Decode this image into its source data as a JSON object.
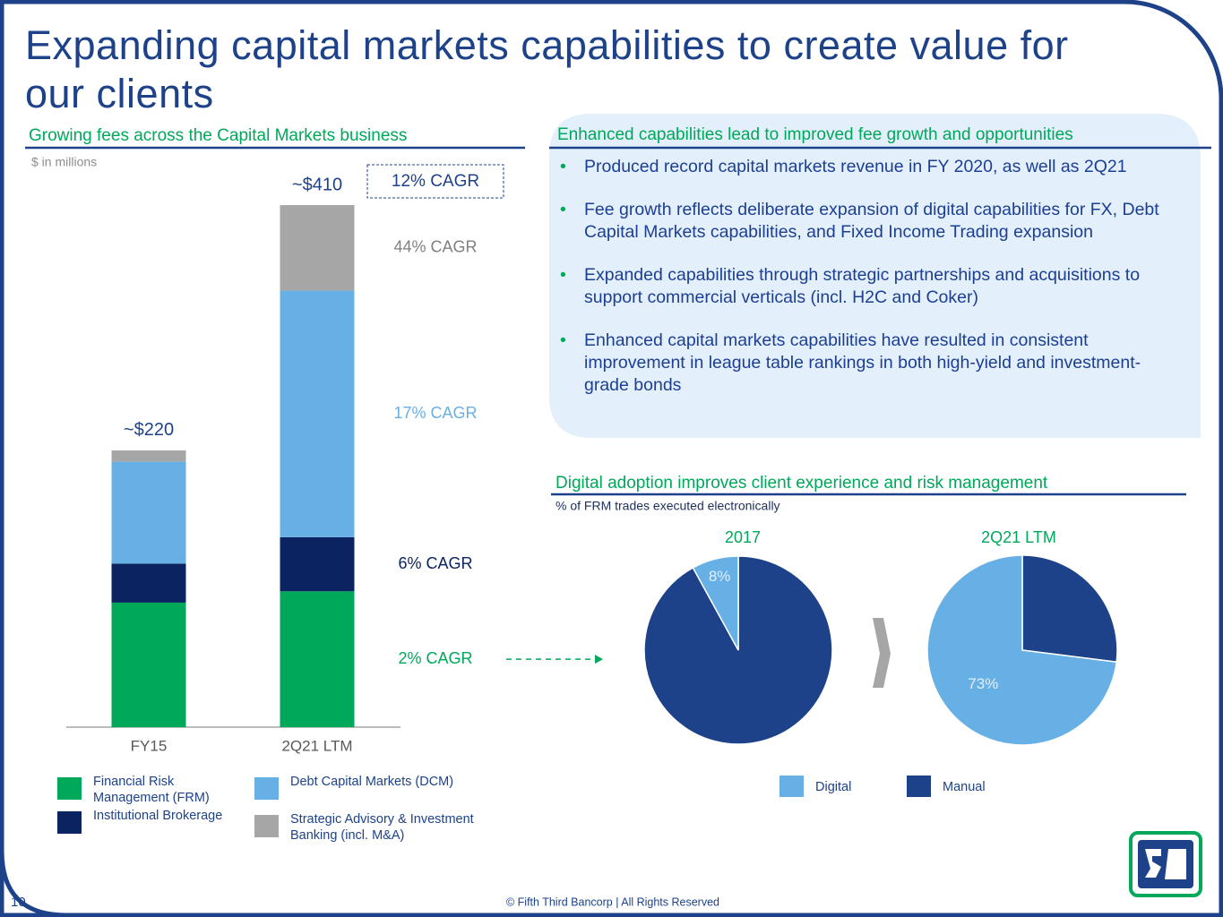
{
  "title": "Expanding capital markets capabilities to create value for our clients",
  "page_number": "10",
  "footer": "© Fifth Third Bancorp | All Rights Reserved",
  "panel": {
    "heading": "Enhanced capabilities lead to improved fee growth and opportunities",
    "bullets": [
      "Produced record capital markets revenue in FY 2020, as well as 2Q21",
      "Fee growth reflects deliberate expansion of digital capabilities for FX, Debt Capital Markets capabilities, and Fixed Income Trading expansion",
      "Expanded capabilities through strategic partnerships and acquisitions to support commercial verticals (incl. H2C and Coker)",
      "Enhanced capital markets capabilities have resulted in consistent improvement in league table rankings in both high-yield and investment-grade bonds"
    ]
  },
  "pie_section": {
    "heading": "Digital adoption improves client experience and risk management",
    "subtitle": "% of FRM trades executed electronically"
  },
  "chart_data": [
    {
      "type": "bar",
      "stacked": true,
      "title": "Growing fees across the Capital Markets business",
      "subtitle": "$ in millions",
      "categories": [
        "FY15",
        "2Q21 LTM"
      ],
      "series": [
        {
          "name": "Financial Risk Management (FRM)",
          "color": "#00a85a",
          "values": [
            99,
            108
          ],
          "annotation": "2% CAGR"
        },
        {
          "name": "Institutional Brokerage",
          "color": "#0b2461",
          "values": [
            31,
            43
          ],
          "annotation": "6% CAGR"
        },
        {
          "name": "Debt Capital Markets (DCM)",
          "color": "#67b0e6",
          "values": [
            81,
            196
          ],
          "annotation": "17% CAGR"
        },
        {
          "name": "Strategic Advisory & Investment Banking (incl. M&A)",
          "color": "#a6a6a6",
          "values": [
            9,
            68
          ],
          "annotation": "44% CAGR"
        }
      ],
      "total_labels": [
        "~$220",
        "~$410"
      ],
      "total_annotation": "12% CAGR",
      "ylim": [
        0,
        420
      ]
    },
    {
      "type": "pie",
      "title": "2017",
      "categories": [
        "Digital",
        "Manual"
      ],
      "values": [
        8,
        92
      ],
      "value_labels": [
        "8%",
        null
      ],
      "colors": [
        "#67b0e6",
        "#1d4289"
      ]
    },
    {
      "type": "pie",
      "title": "2Q21 LTM",
      "categories": [
        "Digital",
        "Manual"
      ],
      "values": [
        73,
        27
      ],
      "value_labels": [
        "73%",
        null
      ],
      "colors": [
        "#67b0e6",
        "#1d4289"
      ]
    }
  ]
}
